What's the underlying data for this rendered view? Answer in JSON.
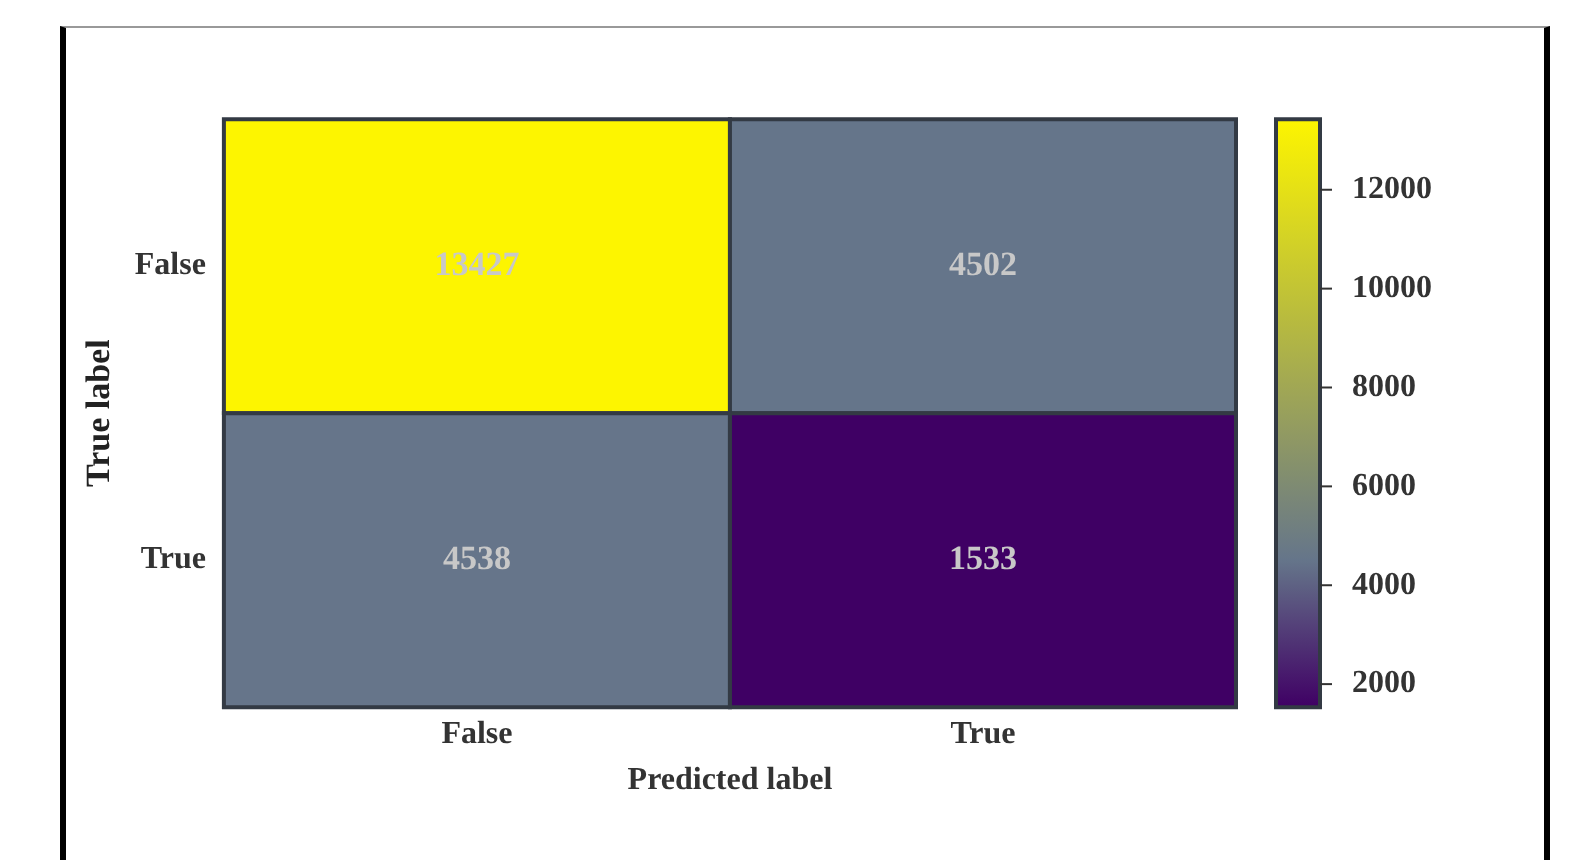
{
  "chart_data": {
    "type": "heatmap",
    "xlabel": "Predicted label",
    "ylabel": "True label",
    "categories": [
      "False",
      "True"
    ],
    "y_categories": [
      "False",
      "True"
    ],
    "cells": [
      [
        13427,
        4502
      ],
      [
        4538,
        1533
      ]
    ],
    "clim": [
      1533,
      13427
    ],
    "cticks": [
      2000,
      4000,
      6000,
      8000,
      10000,
      12000
    ],
    "data_labels": true
  }
}
